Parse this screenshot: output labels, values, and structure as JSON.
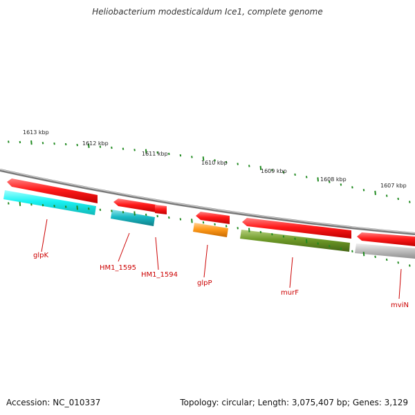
{
  "title": "Heliobacterium modesticaldum Ice1, complete genome",
  "footer": {
    "accession": "Accession: NC_010337",
    "summary": "Topology: circular; Length: 3,075,407 bp; Genes: 3,129"
  },
  "scale_labels": [
    "1613 kbp",
    "1612 kbp",
    "1611 kbp",
    "1610 kbp",
    "1609 kbp",
    "1608 kbp",
    "1607 kbp"
  ],
  "gene_labels": [
    "glpK",
    "HM1_1595",
    "HM1_1594",
    "glpP",
    "murF",
    "mviN"
  ],
  "colors": {
    "backbone": "#7a7a7a",
    "gene_red": "#ff1a1a",
    "glpK_cyan": "#19f2f2",
    "hm1595_teal": "#19b9c4",
    "glpP_orange": "#ff9a1a",
    "murF_olive": "#6e9a28",
    "mviN_gray": "#b9b9b9",
    "tick_green": "#1f8a1f",
    "label_red": "#cc0000"
  }
}
